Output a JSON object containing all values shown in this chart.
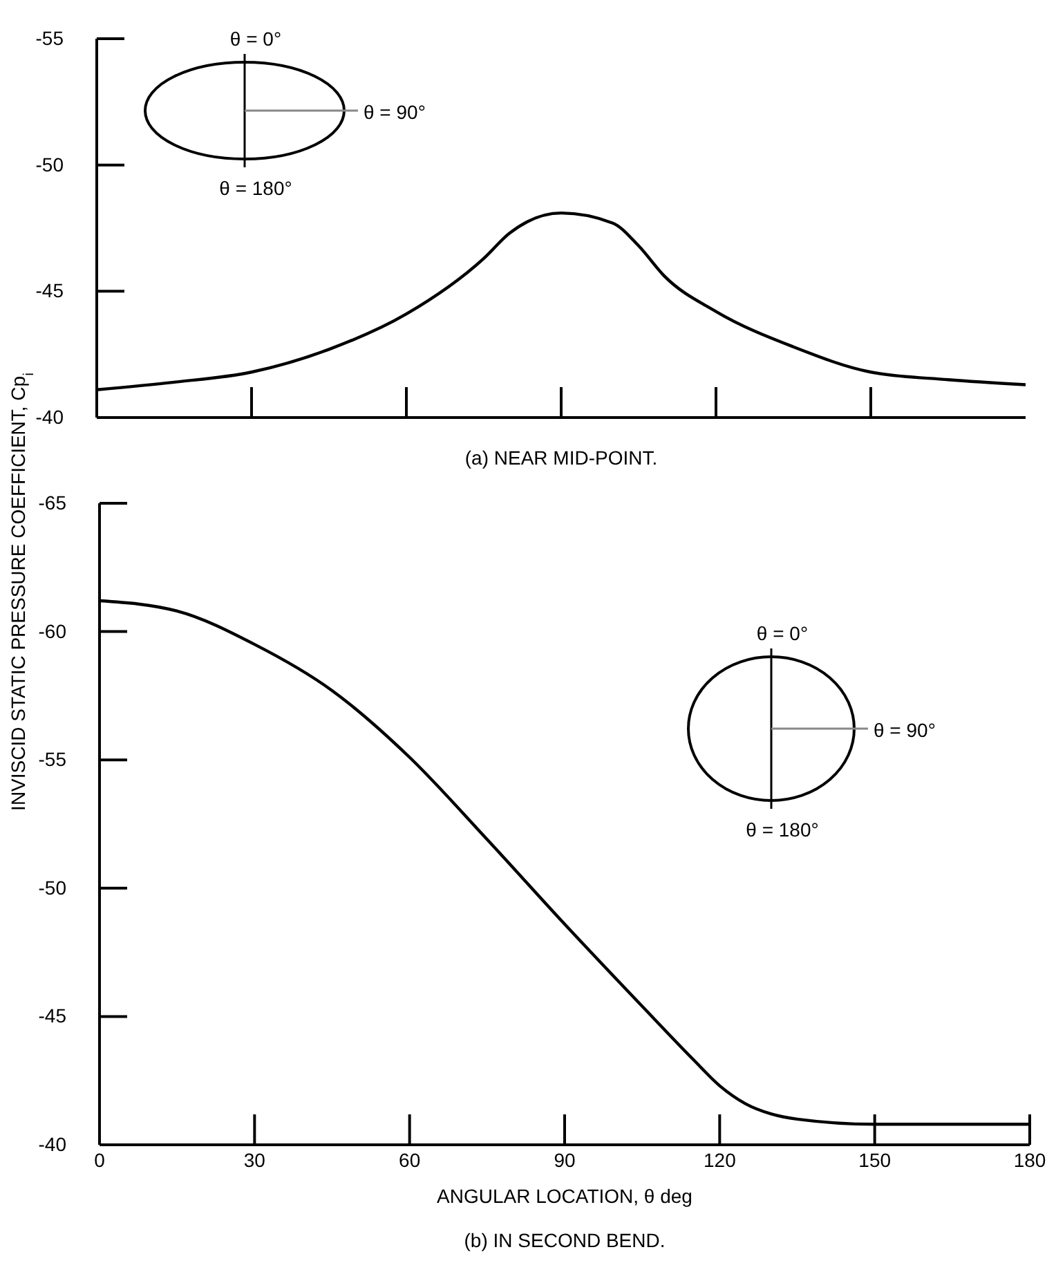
{
  "chart_data": [
    {
      "type": "line",
      "title": "(a) NEAR MID-POINT.",
      "ylabel": "INVISCID STATIC PRESSURE COEFFICIENT, Cp$_{i}$",
      "xlim": [
        0,
        180
      ],
      "xticks": [
        {
          "value": 30,
          "label": null
        },
        {
          "value": 60,
          "label": null
        },
        {
          "value": 90,
          "label": null
        },
        {
          "value": 120,
          "label": null
        },
        {
          "value": 150,
          "label": null
        }
      ],
      "ylim": [
        -40,
        -55
      ],
      "yticks": [
        -40,
        -45,
        -50,
        -55
      ],
      "tick_labels": "y",
      "annotations": [
        "θ = 0°",
        "θ = 90°",
        "θ = 180°"
      ],
      "series": [
        {
          "color": "#000000",
          "x": [
            0,
            15,
            30,
            45,
            60,
            75,
            80,
            90,
            100,
            105,
            110,
            120,
            135,
            150,
            165,
            180
          ],
          "values": [
            -41.1,
            -41.4,
            -41.8,
            -42.7,
            -44.1,
            -46.3,
            -47.3,
            -48.1,
            -47.7,
            -46.8,
            -45.6,
            -44.2,
            -42.8,
            -41.8,
            -41.5,
            -41.3
          ]
        }
      ]
    },
    {
      "type": "line",
      "title": "(b) IN SECOND BEND.",
      "xlabel": "ANGULAR LOCATION, θ deg",
      "xlim": [
        0,
        180
      ],
      "xticks": [
        0,
        30,
        60,
        90,
        120,
        150,
        180
      ],
      "ylim": [
        -40,
        -65
      ],
      "yticks": [
        -40,
        -45,
        -50,
        -55,
        -60,
        -65
      ],
      "annotations": [
        "θ = 0°",
        "θ = 90°",
        "θ = 180°"
      ],
      "series": [
        {
          "color": "#000000",
          "x": [
            0,
            15,
            30,
            45,
            60,
            75,
            90,
            105,
            115,
            120,
            125,
            130,
            135,
            150,
            165,
            180
          ],
          "values": [
            -61.2,
            -60.8,
            -59.5,
            -57.7,
            -55.1,
            -51.9,
            -48.6,
            -45.4,
            -43.3,
            -42.3,
            -41.6,
            -41.2,
            -41.0,
            -40.8,
            -40.8,
            -40.8
          ]
        }
      ]
    }
  ]
}
